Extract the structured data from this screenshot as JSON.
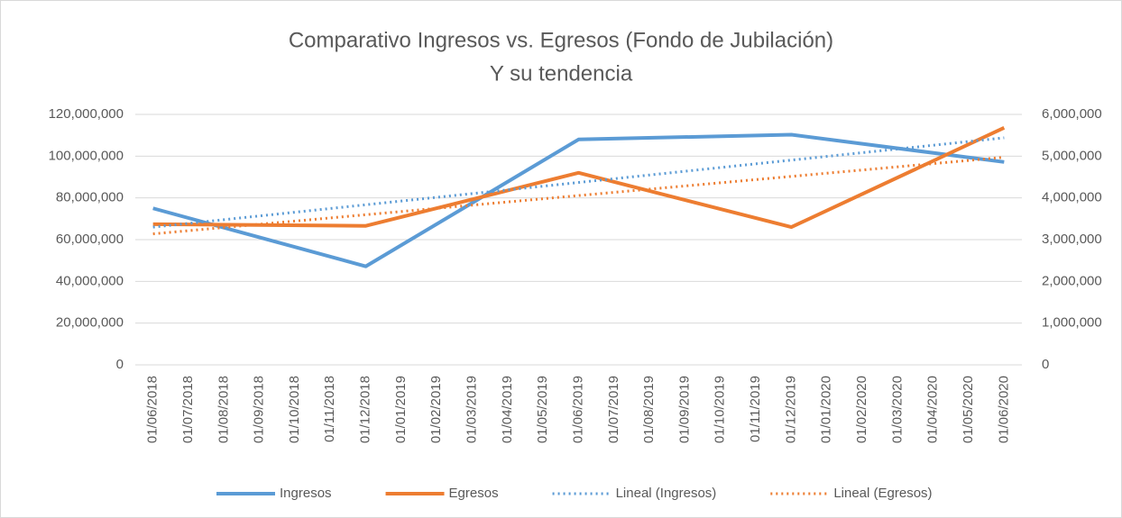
{
  "chart_data": {
    "type": "line",
    "title": "Comparativo Ingresos vs. Egresos (Fondo de Jubilación)",
    "subtitle": "Y su tendencia",
    "categories": [
      "01/06/2018",
      "01/07/2018",
      "01/08/2018",
      "01/09/2018",
      "01/10/2018",
      "01/11/2018",
      "01/12/2018",
      "01/01/2019",
      "01/02/2019",
      "01/03/2019",
      "01/04/2019",
      "01/05/2019",
      "01/06/2019",
      "01/07/2019",
      "01/08/2019",
      "01/09/2019",
      "01/10/2019",
      "01/11/2019",
      "01/12/2019",
      "01/01/2020",
      "01/02/2020",
      "01/03/2020",
      "01/04/2020",
      "01/05/2020",
      "01/06/2020"
    ],
    "series": [
      {
        "name": "Ingresos",
        "color": "#5b9bd5",
        "x": [
          "01/06/2018",
          "01/12/2018",
          "01/06/2019",
          "01/12/2019",
          "01/06/2020"
        ],
        "values": [
          75000000,
          47200000,
          108000000,
          110300000,
          97200000
        ]
      },
      {
        "name": "Egresos",
        "color": "#ed7d31",
        "axis": "y2",
        "x": [
          "01/06/2018",
          "01/12/2018",
          "01/06/2019",
          "01/12/2019",
          "01/06/2020"
        ],
        "values": [
          3370000,
          3330000,
          4600000,
          3300000,
          5680000
        ]
      },
      {
        "name": "Lineal (Ingresos)",
        "color": "#5b9bd5",
        "dotted": true,
        "x": [
          "01/06/2018",
          "01/06/2020"
        ],
        "values": [
          66000000,
          108800000
        ]
      },
      {
        "name": "Lineal (Egresos)",
        "color": "#ed7d31",
        "dotted": true,
        "axis": "y2",
        "x": [
          "01/06/2018",
          "01/06/2020"
        ],
        "values": [
          3138000,
          4974000
        ]
      }
    ],
    "ylim": [
      0,
      120000000
    ],
    "yticks": [
      0,
      {
        "value": 20000000,
        "label": "20,000,000"
      },
      {
        "value": 40000000,
        "label": "40,000,000"
      },
      {
        "value": 60000000,
        "label": "60,000,000"
      },
      {
        "value": 80000000,
        "label": "80,000,000"
      },
      {
        "value": 100000000,
        "label": "100,000,000"
      },
      {
        "value": 120000000,
        "label": "120,000,000"
      }
    ],
    "y2lim": [
      0,
      6000000
    ],
    "y2ticks": [
      0,
      {
        "value": 1000000,
        "label": "1,000,000"
      },
      {
        "value": 2000000,
        "label": "2,000,000"
      },
      {
        "value": 3000000,
        "label": "3,000,000"
      },
      {
        "value": 4000000,
        "label": "4,000,000"
      },
      {
        "value": 5000000,
        "label": "5,000,000"
      },
      {
        "value": 6000000,
        "label": "6,000,000"
      }
    ],
    "grid": true,
    "legend": "bottom"
  }
}
